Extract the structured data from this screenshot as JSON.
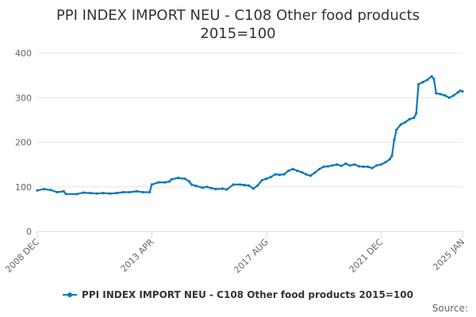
{
  "chart_data": {
    "type": "line",
    "title_line1": "PPI INDEX IMPORT NEU - C108 Other food products",
    "title_line2": "2015=100",
    "ylim": [
      0,
      400
    ],
    "yticks": [
      0,
      100,
      200,
      300,
      400
    ],
    "xticks": [
      {
        "label": "2008 DEC",
        "month": "2008-12"
      },
      {
        "label": "2013 APR",
        "month": "2013-04"
      },
      {
        "label": "2017 AUG",
        "month": "2017-08"
      },
      {
        "label": "2021 DEC",
        "month": "2021-12"
      },
      {
        "label": "2025 JAN",
        "month": "2025-01"
      }
    ],
    "grid": true,
    "legend_position": "bottom",
    "line_color": "#0a7ab5",
    "series": [
      {
        "name": "PPI INDEX IMPORT NEU - C108 Other food products 2015=100",
        "points": [
          [
            "2008-12",
            92
          ],
          [
            "2009-03",
            95
          ],
          [
            "2009-06",
            93
          ],
          [
            "2009-09",
            88
          ],
          [
            "2009-12",
            90
          ],
          [
            "2010-01",
            84
          ],
          [
            "2010-06",
            84
          ],
          [
            "2010-09",
            87
          ],
          [
            "2010-12",
            86
          ],
          [
            "2011-03",
            85
          ],
          [
            "2011-06",
            86
          ],
          [
            "2011-09",
            85
          ],
          [
            "2011-12",
            86
          ],
          [
            "2012-03",
            88
          ],
          [
            "2012-06",
            88
          ],
          [
            "2012-09",
            90
          ],
          [
            "2012-12",
            88
          ],
          [
            "2013-03",
            88
          ],
          [
            "2013-04",
            105
          ],
          [
            "2013-07",
            110
          ],
          [
            "2013-10",
            110
          ],
          [
            "2013-12",
            112
          ],
          [
            "2014-01",
            117
          ],
          [
            "2014-04",
            120
          ],
          [
            "2014-07",
            118
          ],
          [
            "2014-09",
            112
          ],
          [
            "2014-10",
            105
          ],
          [
            "2014-12",
            102
          ],
          [
            "2015-03",
            98
          ],
          [
            "2015-05",
            100
          ],
          [
            "2015-07",
            97
          ],
          [
            "2015-09",
            95
          ],
          [
            "2015-12",
            96
          ],
          [
            "2016-02",
            94
          ],
          [
            "2016-05",
            105
          ],
          [
            "2016-08",
            105
          ],
          [
            "2016-10",
            104
          ],
          [
            "2016-12",
            103
          ],
          [
            "2017-02",
            96
          ],
          [
            "2017-04",
            103
          ],
          [
            "2017-06",
            115
          ],
          [
            "2017-08",
            118
          ],
          [
            "2017-10",
            122
          ],
          [
            "2017-12",
            128
          ],
          [
            "2018-02",
            127
          ],
          [
            "2018-04",
            128
          ],
          [
            "2018-06",
            136
          ],
          [
            "2018-08",
            140
          ],
          [
            "2018-10",
            136
          ],
          [
            "2018-12",
            133
          ],
          [
            "2019-02",
            128
          ],
          [
            "2019-04",
            125
          ],
          [
            "2019-06",
            132
          ],
          [
            "2019-08",
            140
          ],
          [
            "2019-10",
            145
          ],
          [
            "2019-12",
            146
          ],
          [
            "2020-02",
            148
          ],
          [
            "2020-04",
            150
          ],
          [
            "2020-06",
            147
          ],
          [
            "2020-08",
            152
          ],
          [
            "2020-10",
            148
          ],
          [
            "2020-12",
            150
          ],
          [
            "2021-02",
            146
          ],
          [
            "2021-04",
            145
          ],
          [
            "2021-06",
            145
          ],
          [
            "2021-08",
            142
          ],
          [
            "2021-10",
            148
          ],
          [
            "2021-12",
            150
          ],
          [
            "2022-02",
            155
          ],
          [
            "2022-04",
            162
          ],
          [
            "2022-05",
            170
          ],
          [
            "2022-06",
            205
          ],
          [
            "2022-07",
            228
          ],
          [
            "2022-09",
            240
          ],
          [
            "2022-11",
            245
          ],
          [
            "2023-01",
            252
          ],
          [
            "2023-03",
            255
          ],
          [
            "2023-04",
            265
          ],
          [
            "2023-05",
            330
          ],
          [
            "2023-07",
            335
          ],
          [
            "2023-09",
            340
          ],
          [
            "2023-11",
            348
          ],
          [
            "2023-12",
            342
          ],
          [
            "2024-01",
            310
          ],
          [
            "2024-03",
            308
          ],
          [
            "2024-05",
            305
          ],
          [
            "2024-07",
            300
          ],
          [
            "2024-09",
            305
          ],
          [
            "2024-11",
            312
          ],
          [
            "2024-12",
            316
          ],
          [
            "2025-01",
            314
          ]
        ]
      }
    ]
  },
  "credit": "Source:"
}
